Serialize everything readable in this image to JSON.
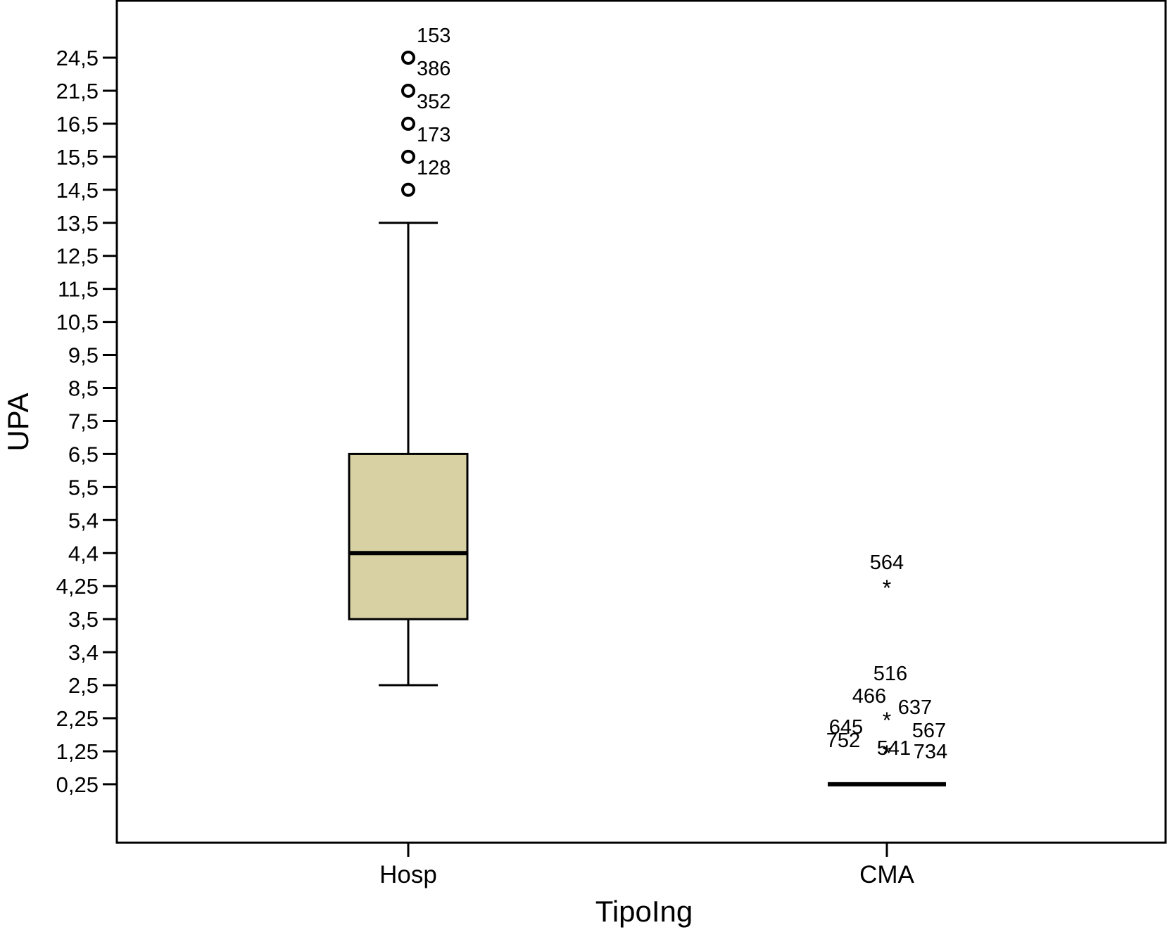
{
  "chart_data": {
    "type": "box",
    "ylabel": "UPA",
    "xlabel": "TipoIng",
    "y_ticks": [
      "0,25",
      "1,25",
      "2,25",
      "2,5",
      "3,4",
      "3,5",
      "4,25",
      "4,4",
      "5,4",
      "5,5",
      "6,5",
      "7,5",
      "8,5",
      "9,5",
      "10,5",
      "11,5",
      "12,5",
      "13,5",
      "14,5",
      "15,5",
      "16,5",
      "21,5",
      "24,5"
    ],
    "categories": [
      "Hosp",
      "CMA"
    ],
    "boxes": [
      {
        "category": "Hosp",
        "whisker_low": "2,5",
        "q1": "3,5",
        "median": "4,4",
        "q3": "6,5",
        "whisker_high": "13,5",
        "outliers": [
          {
            "value": "14,5",
            "label": "128",
            "marker": "circle"
          },
          {
            "value": "15,5",
            "label": "173",
            "marker": "circle"
          },
          {
            "value": "16,5",
            "label": "352",
            "marker": "circle"
          },
          {
            "value": "21,5",
            "label": "386",
            "marker": "circle"
          },
          {
            "value": "24,5",
            "label": "153",
            "marker": "circle"
          }
        ]
      },
      {
        "category": "CMA",
        "median": "0,25",
        "collapsed": true,
        "extremes": [
          {
            "value": "1,25",
            "labels": [
              "752",
              "645",
              "541",
              "734",
              "567"
            ],
            "marker": "asterisk"
          },
          {
            "value": "2,25",
            "labels": [
              "466",
              "637",
              "516"
            ],
            "marker": "asterisk"
          },
          {
            "value": "4,25",
            "labels": [
              "564"
            ],
            "marker": "asterisk"
          }
        ]
      }
    ],
    "box_fill": "#d8d1a3",
    "line_color": "#000000"
  }
}
